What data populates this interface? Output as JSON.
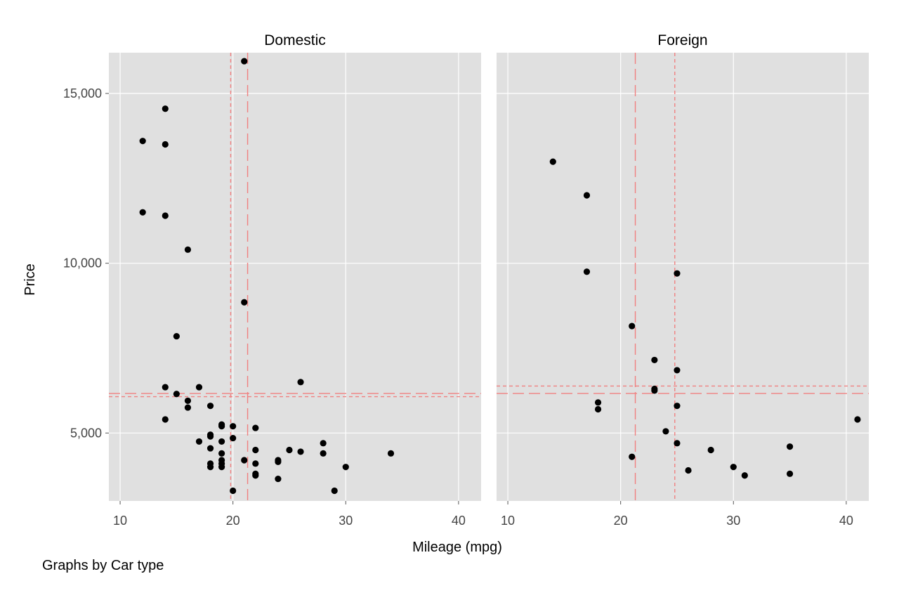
{
  "chart_data": {
    "type": "scatter",
    "xlabel": "Mileage (mpg)",
    "ylabel": "Price",
    "note": "Graphs by Car type",
    "xlim": [
      9,
      42
    ],
    "ylim": [
      3000,
      16200
    ],
    "xticks": [
      10,
      20,
      30,
      40
    ],
    "xtick_labels": [
      "10",
      "20",
      "30",
      "40"
    ],
    "yticks": [
      5000,
      10000,
      15000
    ],
    "ytick_labels": [
      "5,000",
      "10,000",
      "15,000"
    ],
    "grid": true,
    "panel_background": "#e0e0e0",
    "point_color": "#000000",
    "line_color": "#f08080",
    "panels": [
      {
        "title": "Domestic",
        "reference_lines": [
          {
            "axis": "x",
            "value": 19.8,
            "style": "short-dash"
          },
          {
            "axis": "x",
            "value": 21.3,
            "style": "long-dash"
          },
          {
            "axis": "y",
            "value": 6072,
            "style": "short-dash"
          },
          {
            "axis": "y",
            "value": 6165,
            "style": "long-dash"
          }
        ],
        "points": [
          [
            21,
            15950
          ],
          [
            14,
            14550
          ],
          [
            12,
            13600
          ],
          [
            14,
            13500
          ],
          [
            12,
            11500
          ],
          [
            14,
            11400
          ],
          [
            16,
            10400
          ],
          [
            21,
            8850
          ],
          [
            15,
            7850
          ],
          [
            26,
            6500
          ],
          [
            14,
            6350
          ],
          [
            17,
            6350
          ],
          [
            15,
            6150
          ],
          [
            16,
            5950
          ],
          [
            16,
            5750
          ],
          [
            18,
            5800
          ],
          [
            14,
            5400
          ],
          [
            19,
            5250
          ],
          [
            19,
            5200
          ],
          [
            20,
            5200
          ],
          [
            22,
            5150
          ],
          [
            18,
            4950
          ],
          [
            18,
            4900
          ],
          [
            20,
            4850
          ],
          [
            17,
            4750
          ],
          [
            19,
            4750
          ],
          [
            28,
            4700
          ],
          [
            18,
            4550
          ],
          [
            22,
            4500
          ],
          [
            25,
            4500
          ],
          [
            26,
            4450
          ],
          [
            19,
            4400
          ],
          [
            28,
            4400
          ],
          [
            34,
            4400
          ],
          [
            21,
            4200
          ],
          [
            24,
            4200
          ],
          [
            19,
            4200
          ],
          [
            24,
            4150
          ],
          [
            22,
            4100
          ],
          [
            18,
            4100
          ],
          [
            19,
            4100
          ],
          [
            18,
            4000
          ],
          [
            19,
            4000
          ],
          [
            30,
            4000
          ],
          [
            22,
            3800
          ],
          [
            22,
            3750
          ],
          [
            24,
            3650
          ],
          [
            20,
            3300
          ],
          [
            29,
            3300
          ]
        ]
      },
      {
        "title": "Foreign",
        "reference_lines": [
          {
            "axis": "x",
            "value": 21.3,
            "style": "long-dash"
          },
          {
            "axis": "x",
            "value": 24.8,
            "style": "short-dash"
          },
          {
            "axis": "y",
            "value": 6165,
            "style": "long-dash"
          },
          {
            "axis": "y",
            "value": 6385,
            "style": "short-dash"
          }
        ],
        "points": [
          [
            14,
            12990
          ],
          [
            17,
            12000
          ],
          [
            17,
            9750
          ],
          [
            25,
            9700
          ],
          [
            21,
            8150
          ],
          [
            23,
            7150
          ],
          [
            25,
            6850
          ],
          [
            23,
            6300
          ],
          [
            23,
            6250
          ],
          [
            18,
            5900
          ],
          [
            25,
            5800
          ],
          [
            18,
            5700
          ],
          [
            41,
            5400
          ],
          [
            24,
            5050
          ],
          [
            25,
            4700
          ],
          [
            35,
            4600
          ],
          [
            28,
            4500
          ],
          [
            21,
            4300
          ],
          [
            30,
            4000
          ],
          [
            26,
            3900
          ],
          [
            35,
            3800
          ],
          [
            31,
            3750
          ]
        ]
      }
    ]
  }
}
